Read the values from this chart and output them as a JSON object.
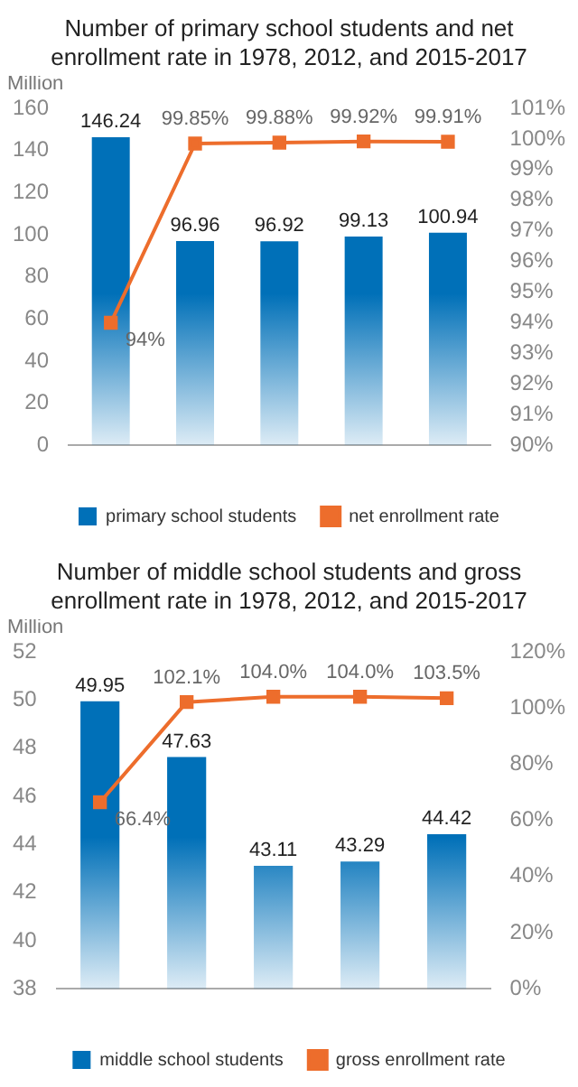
{
  "chart_data": [
    {
      "type": "bar",
      "title": "Number of primary school students and net enrollment rate in 1978, 2012, and 2015-2017",
      "ylabel": "Million",
      "categories": [
        null,
        null,
        null,
        null,
        null
      ],
      "series": [
        {
          "name": "primary school students",
          "color": "#0070b8",
          "values": [
            146.24,
            96.96,
            96.92,
            99.13,
            100.94
          ],
          "value_labels": [
            "146.24",
            "96.96",
            "96.92",
            "99.13",
            "100.94"
          ]
        },
        {
          "name": "net enrollment rate",
          "type": "line",
          "axis": "y2",
          "color": "#ed6d2c",
          "marker": "square",
          "values": [
            94,
            99.85,
            99.88,
            99.92,
            99.91
          ],
          "value_labels": [
            "94%",
            "99.85%",
            "99.88%",
            "99.92%",
            "99.91%"
          ]
        }
      ],
      "ylim": [
        0,
        160
      ],
      "yticks": [
        0,
        20,
        40,
        60,
        80,
        100,
        120,
        140,
        160
      ],
      "y2lim": [
        90,
        101
      ],
      "y2ticks": [
        {
          "value": 90,
          "label": "90%"
        },
        {
          "value": 91,
          "label": "91%"
        },
        {
          "value": 92,
          "label": "92%"
        },
        {
          "value": 93,
          "label": "93%"
        },
        {
          "value": 94,
          "label": "94%"
        },
        {
          "value": 95,
          "label": "95%"
        },
        {
          "value": 96,
          "label": "96%"
        },
        {
          "value": 97,
          "label": "97%"
        },
        {
          "value": 98,
          "label": "98%"
        },
        {
          "value": 99,
          "label": "99%"
        },
        {
          "value": 100,
          "label": "100%"
        },
        {
          "value": 101,
          "label": "101%"
        }
      ],
      "grid": false,
      "legend": "bottom"
    },
    {
      "type": "bar",
      "title": "Number of middle school students and gross enrollment rate in 1978, 2012, and 2015-2017",
      "ylabel": "Million",
      "categories": [
        null,
        null,
        null,
        null,
        null
      ],
      "series": [
        {
          "name": "middle school students",
          "color": "#0070b8",
          "values": [
            49.95,
            47.63,
            43.11,
            43.29,
            44.42
          ],
          "value_labels": [
            "49.95",
            "47.63",
            "43.11",
            "43.29",
            "44.42"
          ]
        },
        {
          "name": "gross enrollment rate",
          "type": "line",
          "axis": "y2",
          "color": "#ed6d2c",
          "marker": "square",
          "values": [
            66.4,
            102.1,
            104.0,
            104.0,
            103.5
          ],
          "value_labels": [
            "66.4%",
            "102.1%",
            "104.0%",
            "104.0%",
            "103.5%"
          ]
        }
      ],
      "ylim": [
        38,
        52
      ],
      "yticks": [
        38,
        40,
        42,
        44,
        46,
        48,
        50,
        52
      ],
      "y2lim": [
        0,
        120
      ],
      "y2ticks": [
        {
          "value": 0,
          "label": "0%"
        },
        {
          "value": 20,
          "label": "20%"
        },
        {
          "value": 40,
          "label": "40%"
        },
        {
          "value": 60,
          "label": "60%"
        },
        {
          "value": 80,
          "label": "80%"
        },
        {
          "value": 100,
          "label": "100%"
        },
        {
          "value": 120,
          "label": "120%"
        }
      ],
      "grid": false,
      "legend": "bottom"
    }
  ]
}
